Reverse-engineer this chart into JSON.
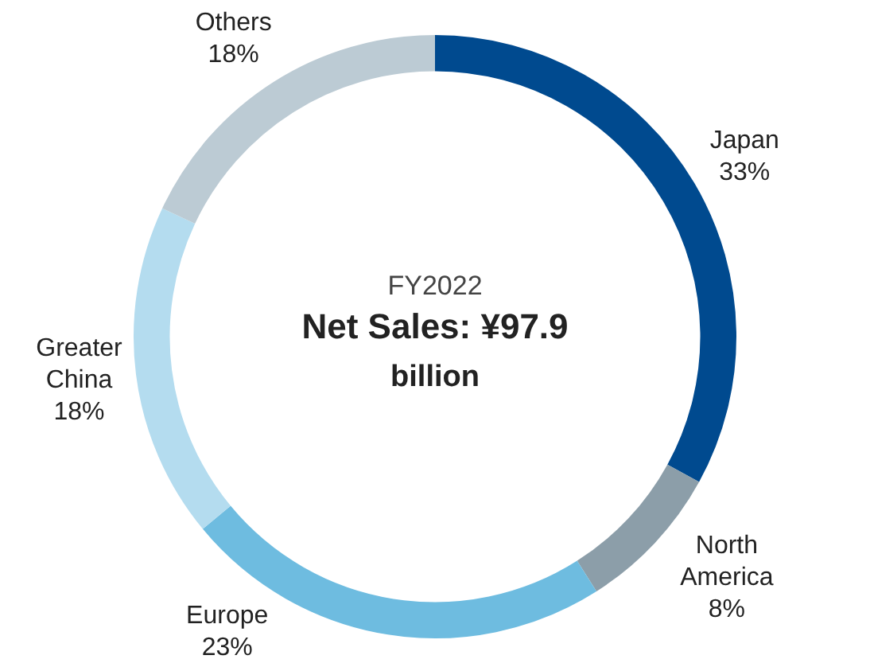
{
  "chart_data": {
    "type": "donut",
    "subtitle": "FY2022",
    "title": "Net Sales: ¥97.9 billion",
    "categories": [
      "Japan",
      "North America",
      "Europe",
      "Greater China",
      "Others"
    ],
    "values": [
      33,
      8,
      23,
      18,
      18
    ],
    "colors": [
      "#004a8f",
      "#8c9ea9",
      "#6ebce0",
      "#b4dcef",
      "#bccbd4"
    ],
    "value_labels": [
      "33%",
      "8%",
      "23%",
      "18%",
      "18%"
    ],
    "legend": false
  }
}
